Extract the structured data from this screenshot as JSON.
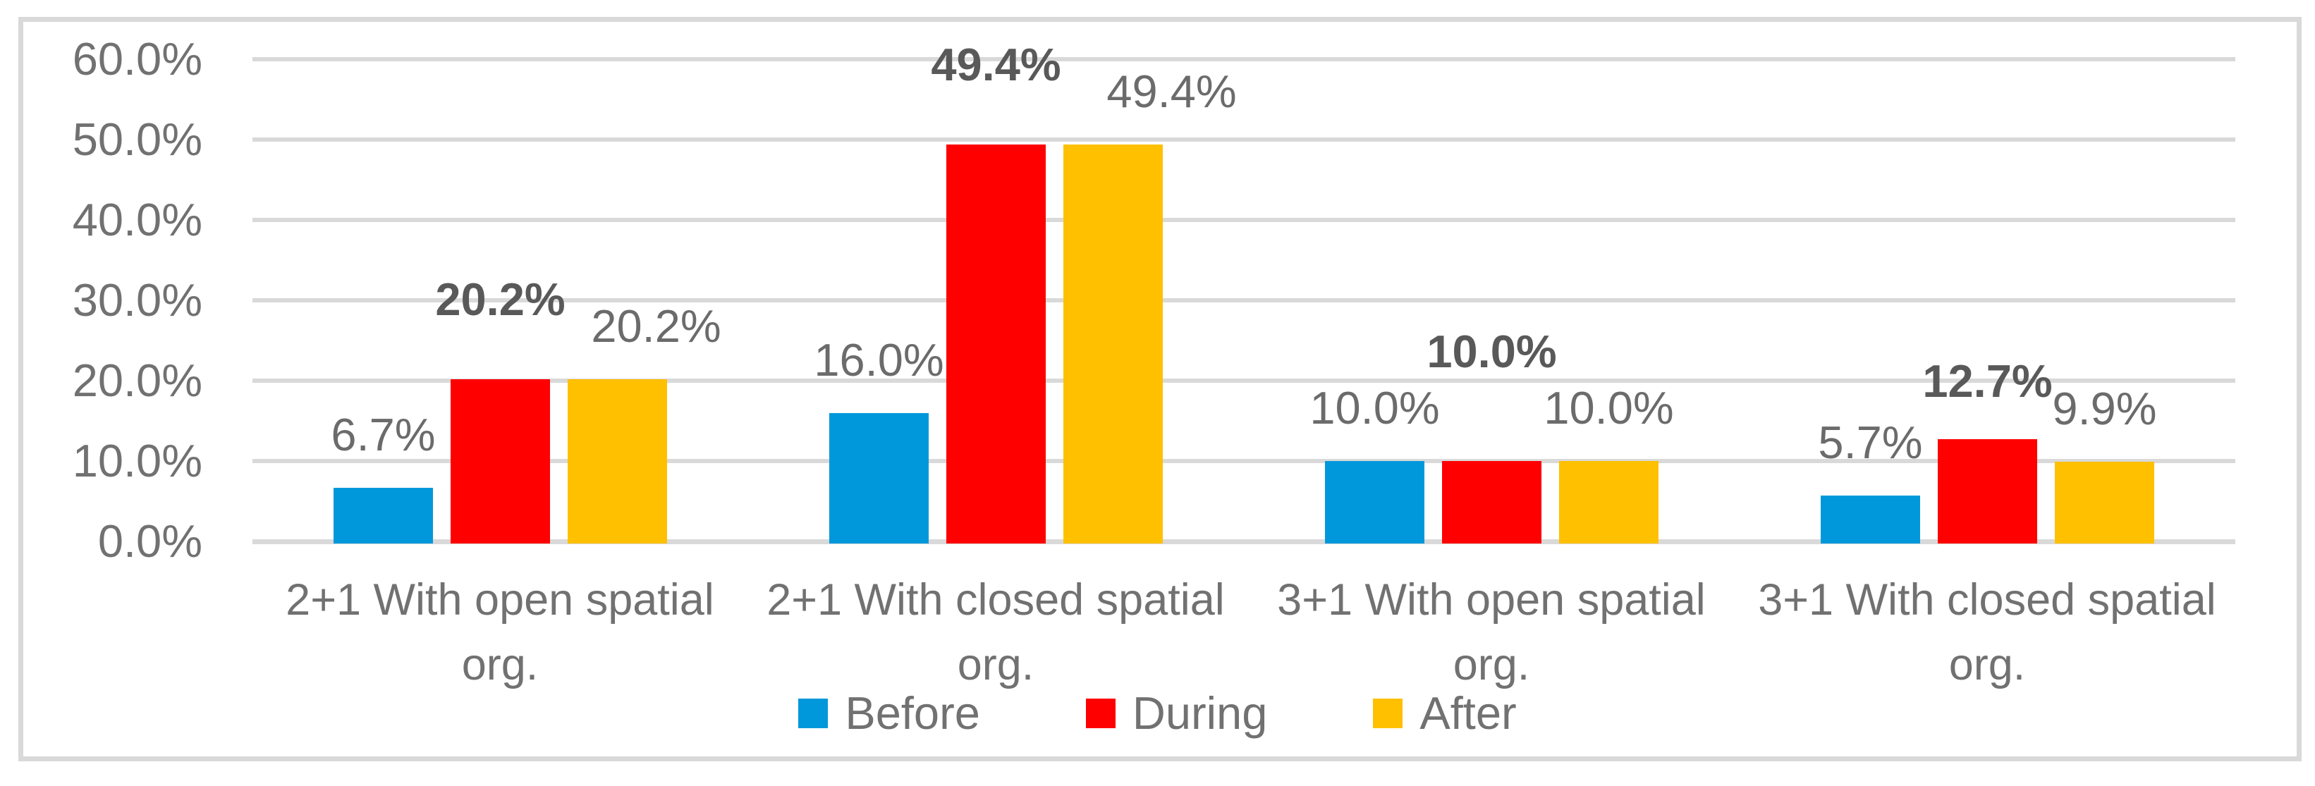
{
  "chart_data": {
    "type": "bar",
    "title": "",
    "y_axis": {
      "min": 0,
      "max": 60,
      "step": 10,
      "tick_labels": [
        "0.0%",
        "10.0%",
        "20.0%",
        "30.0%",
        "40.0%",
        "50.0%",
        "60.0%"
      ]
    },
    "categories": [
      {
        "line1": "2+1 With open spatial",
        "line2": "org."
      },
      {
        "line1": "2+1 With closed spatial",
        "line2": "org."
      },
      {
        "line1": "3+1 With open spatial",
        "line2": "org."
      },
      {
        "line1": "3+1 With closed spatial",
        "line2": "org."
      }
    ],
    "series": [
      {
        "name": "Before",
        "color": "#0098DB",
        "values": [
          6.7,
          16.0,
          10.0,
          5.7
        ],
        "data_labels": [
          "6.7%",
          "16.0%",
          "10.0%",
          "5.7%"
        ],
        "label_bold": false
      },
      {
        "name": "During",
        "color": "#FF0000",
        "values": [
          20.2,
          49.4,
          10.0,
          12.7
        ],
        "data_labels": [
          "20.2%",
          "49.4%",
          "10.0%",
          "12.7%"
        ],
        "label_bold": true
      },
      {
        "name": "After",
        "color": "#FFC000",
        "values": [
          20.2,
          49.4,
          10.0,
          9.9
        ],
        "data_labels": [
          "20.2%",
          "49.4%",
          "10.0%",
          "9.9%"
        ],
        "label_bold": false
      }
    ],
    "legend": {
      "position": "bottom",
      "entries": [
        "Before",
        "During",
        "After"
      ]
    },
    "gridlines": true,
    "styles": {
      "grid_color": "#D9D9D9",
      "frame_color": "#D9D9D9",
      "text_color": "#717171",
      "data_label_color": "#6B6B6B",
      "bold_label_color": "#595959",
      "background": "#FFFFFF"
    }
  }
}
